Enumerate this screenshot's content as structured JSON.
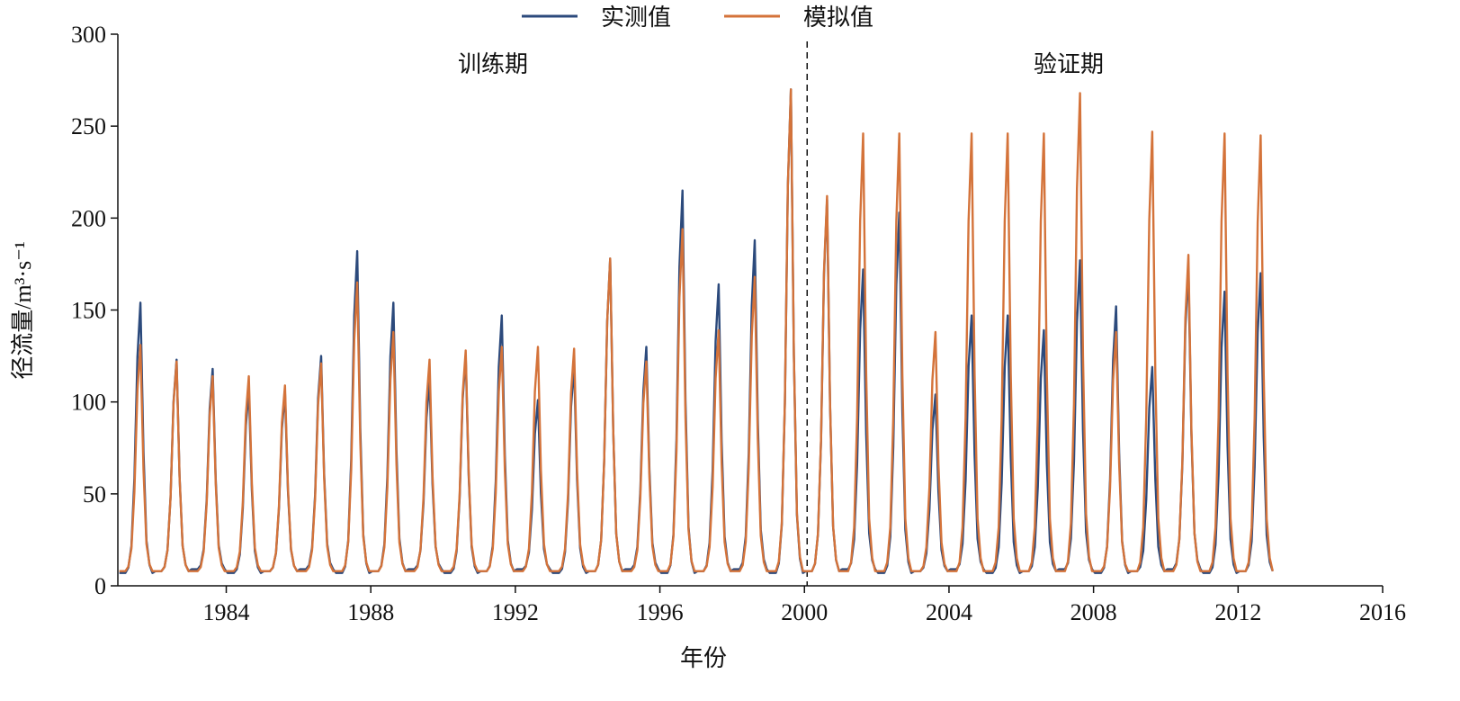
{
  "chart_data": {
    "type": "line",
    "title": "",
    "xlabel": "年份",
    "ylabel": "径流量/m³·s⁻¹",
    "xlim": [
      1981,
      2016
    ],
    "ylim": [
      0,
      300
    ],
    "xticks": [
      1984,
      1988,
      1992,
      1996,
      2000,
      2004,
      2008,
      2012,
      2016
    ],
    "yticks": [
      0,
      50,
      100,
      150,
      200,
      250,
      300
    ],
    "grid": false,
    "legend_position": "top-center",
    "annotations": [
      {
        "text": "训练期",
        "x": 1991.5
      },
      {
        "text": "验证期",
        "x": 2007
      },
      {
        "text": "",
        "type": "dashed-vline",
        "x": 2000
      }
    ],
    "years": [
      1981,
      1982,
      1983,
      1984,
      1985,
      1986,
      1987,
      1988,
      1989,
      1990,
      1991,
      1992,
      1993,
      1994,
      1995,
      1996,
      1997,
      1998,
      1999,
      2000,
      2001,
      2002,
      2003,
      2004,
      2005,
      2006,
      2007,
      2008,
      2009,
      2010,
      2011,
      2012
    ],
    "baseflow": 8,
    "series": [
      {
        "name": "实测值",
        "color": "#2c4a7c",
        "annual_peak": [
          154,
          123,
          118,
          107,
          105,
          125,
          182,
          154,
          112,
          125,
          147,
          101,
          120,
          178,
          130,
          215,
          164,
          188,
          270,
          210,
          172,
          203,
          104,
          147,
          147,
          139,
          177,
          152,
          119,
          173,
          160,
          170
        ]
      },
      {
        "name": "模拟值",
        "color": "#d4733a",
        "annual_peak": [
          131,
          122,
          114,
          114,
          109,
          121,
          165,
          138,
          123,
          128,
          130,
          130,
          129,
          178,
          122,
          194,
          139,
          168,
          270,
          212,
          246,
          246,
          138,
          246,
          246,
          246,
          268,
          138,
          247,
          180,
          246,
          245
        ]
      }
    ]
  }
}
